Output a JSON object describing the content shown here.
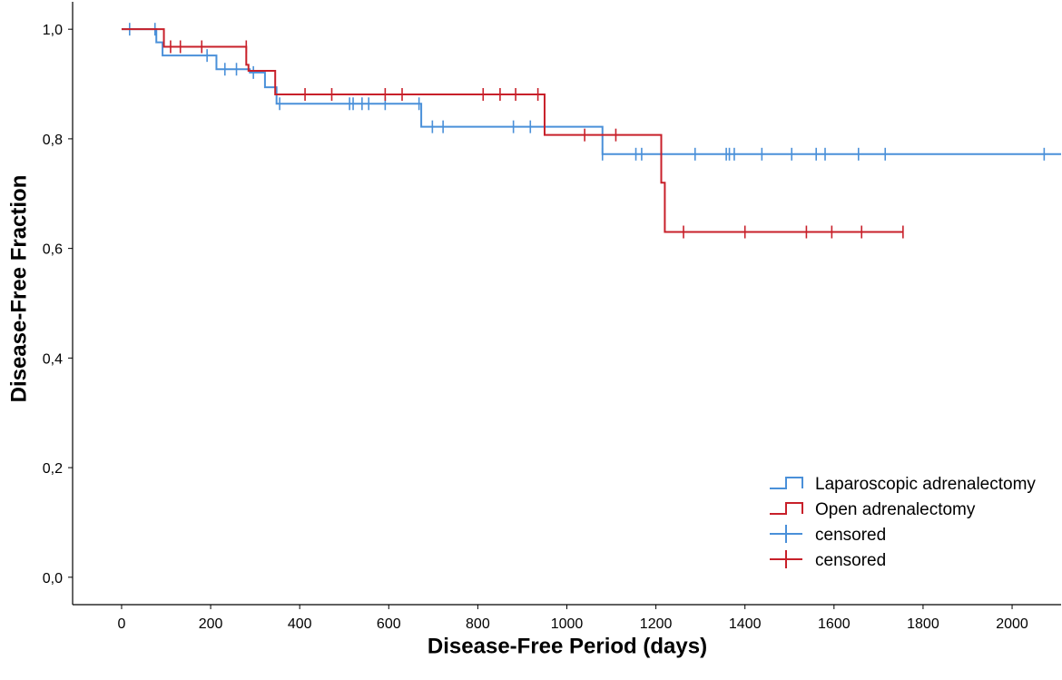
{
  "chart_data": {
    "type": "line",
    "subtype": "kaplan-meier",
    "title": "",
    "xlabel": "Disease-Free Period (days)",
    "ylabel": "Disease-Free Fraction",
    "xlim": [
      -110,
      2110
    ],
    "ylim": [
      -0.05,
      1.05
    ],
    "x_ticks": [
      0,
      200,
      400,
      600,
      800,
      1000,
      1200,
      1400,
      1600,
      1800,
      2000
    ],
    "x_tick_labels": [
      "0",
      "200",
      "400",
      "600",
      "800",
      "1000",
      "1200",
      "1400",
      "1600",
      "1800",
      "2000"
    ],
    "y_ticks": [
      0.0,
      0.2,
      0.4,
      0.6,
      0.8,
      1.0
    ],
    "y_tick_labels": [
      "0,0",
      "0,2",
      "0,4",
      "0,6",
      "0,8",
      "1,0"
    ],
    "grid": false,
    "legend_position": "bottom-right",
    "series": [
      {
        "name": "Laparoscopic adrenalectomy",
        "color": "#4a90d9",
        "steps": [
          [
            0,
            1.0
          ],
          [
            78,
            0.976
          ],
          [
            92,
            0.952
          ],
          [
            213,
            0.927
          ],
          [
            288,
            0.921
          ],
          [
            322,
            0.894
          ],
          [
            348,
            0.864
          ],
          [
            673,
            0.822
          ],
          [
            1080,
            0.772
          ],
          [
            2110,
            0.772
          ]
        ],
        "censored": [
          [
            18,
            1.0
          ],
          [
            75,
            1.0
          ],
          [
            192,
            0.952
          ],
          [
            232,
            0.927
          ],
          [
            258,
            0.927
          ],
          [
            296,
            0.921
          ],
          [
            355,
            0.864
          ],
          [
            512,
            0.864
          ],
          [
            520,
            0.864
          ],
          [
            540,
            0.864
          ],
          [
            555,
            0.864
          ],
          [
            592,
            0.864
          ],
          [
            668,
            0.864
          ],
          [
            698,
            0.822
          ],
          [
            722,
            0.822
          ],
          [
            880,
            0.822
          ],
          [
            918,
            0.822
          ],
          [
            1080,
            0.772
          ],
          [
            1155,
            0.772
          ],
          [
            1168,
            0.772
          ],
          [
            1288,
            0.772
          ],
          [
            1358,
            0.772
          ],
          [
            1365,
            0.772
          ],
          [
            1376,
            0.772
          ],
          [
            1438,
            0.772
          ],
          [
            1505,
            0.772
          ],
          [
            1560,
            0.772
          ],
          [
            1580,
            0.772
          ],
          [
            1655,
            0.772
          ],
          [
            1715,
            0.772
          ],
          [
            2072,
            0.772
          ]
        ]
      },
      {
        "name": "Open adrenalectomy",
        "color": "#c8202a",
        "steps": [
          [
            0,
            1.0
          ],
          [
            95,
            0.968
          ],
          [
            280,
            0.935
          ],
          [
            285,
            0.924
          ],
          [
            345,
            0.881
          ],
          [
            950,
            0.807
          ],
          [
            1212,
            0.72
          ],
          [
            1220,
            0.63
          ],
          [
            1755,
            0.63
          ]
        ],
        "censored": [
          [
            110,
            0.968
          ],
          [
            132,
            0.968
          ],
          [
            180,
            0.968
          ],
          [
            280,
            0.968
          ],
          [
            412,
            0.881
          ],
          [
            472,
            0.881
          ],
          [
            592,
            0.881
          ],
          [
            630,
            0.881
          ],
          [
            812,
            0.881
          ],
          [
            850,
            0.881
          ],
          [
            885,
            0.881
          ],
          [
            935,
            0.881
          ],
          [
            1040,
            0.807
          ],
          [
            1110,
            0.807
          ],
          [
            1262,
            0.63
          ],
          [
            1400,
            0.63
          ],
          [
            1538,
            0.63
          ],
          [
            1595,
            0.63
          ],
          [
            1662,
            0.63
          ],
          [
            1755,
            0.63
          ]
        ]
      }
    ],
    "legend": [
      {
        "label": "Laparoscopic adrenalectomy",
        "kind": "step",
        "color": "#4a90d9"
      },
      {
        "label": "Open adrenalectomy",
        "kind": "step",
        "color": "#c8202a"
      },
      {
        "label": "censored",
        "kind": "censor",
        "color": "#4a90d9"
      },
      {
        "label": "censored",
        "kind": "censor",
        "color": "#c8202a"
      }
    ]
  }
}
